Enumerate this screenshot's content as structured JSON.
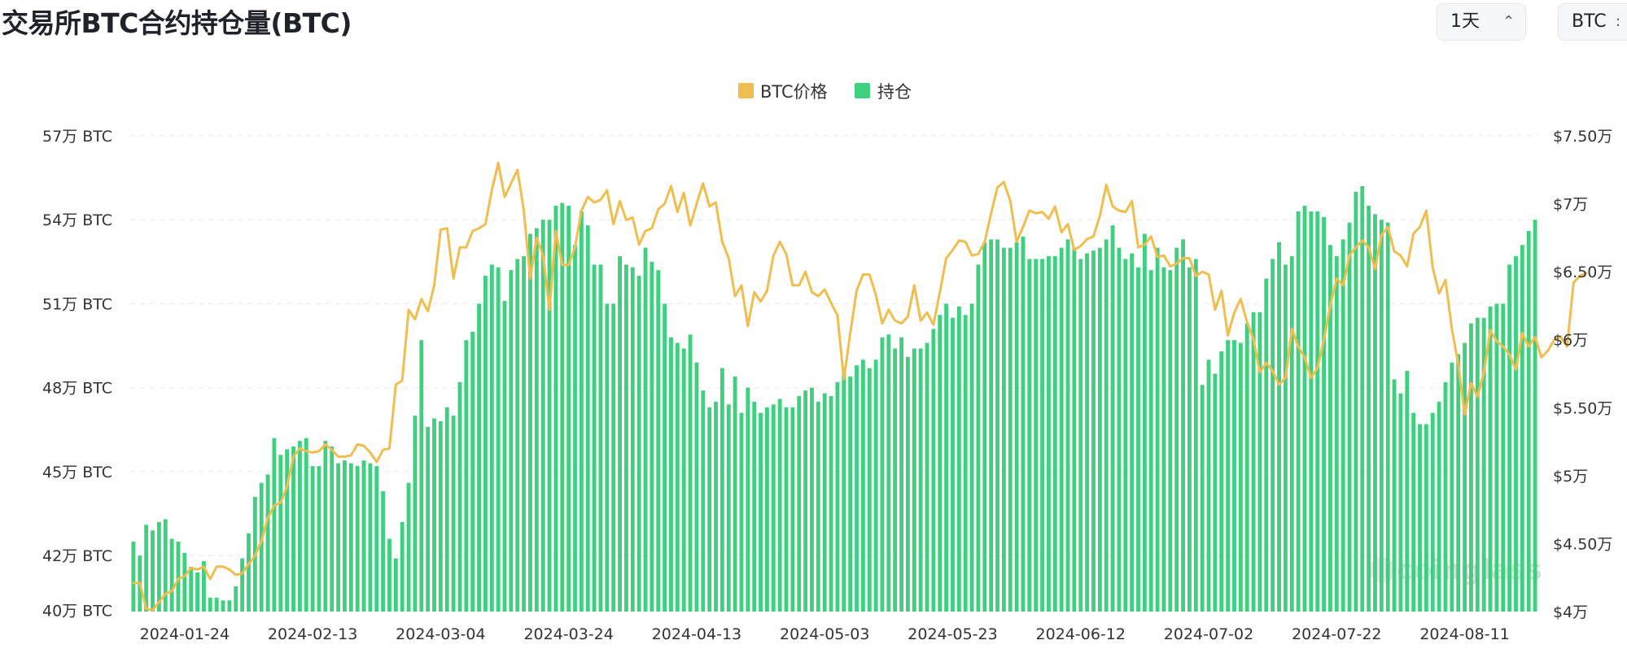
{
  "header": {
    "title": "交易所BTC合约持仓量(BTC)",
    "interval_select": "1天",
    "unit_select": "BTC"
  },
  "watermark": "coinglass",
  "colors": {
    "price": "#f0bd4f",
    "oi": "#3fd07f",
    "grid": "#e6e8eb"
  },
  "chart_data": {
    "type": "bar",
    "title": "交易所BTC合约持仓量(BTC)",
    "legend": {
      "placement": "top-center",
      "items": [
        "BTC价格",
        "持仓"
      ]
    },
    "x_ticks": [
      "2024-01-24",
      "2024-02-13",
      "2024-03-04",
      "2024-03-24",
      "2024-04-13",
      "2024-05-03",
      "2024-05-23",
      "2024-06-12",
      "2024-07-02",
      "2024-07-22",
      "2024-08-11"
    ],
    "y_left": {
      "unit": "BTC",
      "min": 40,
      "max": 57,
      "ticks": [
        "57万 BTC",
        "54万 BTC",
        "51万 BTC",
        "48万 BTC",
        "45万 BTC",
        "42万 BTC",
        "40万 BTC"
      ],
      "tick_values": [
        57,
        54,
        51,
        48,
        45,
        42,
        40.05
      ]
    },
    "y_right": {
      "min": 40000,
      "max": 75000,
      "ticks": [
        "$7.50万",
        "$7万",
        "$6.50万",
        "$6万",
        "$5.50万",
        "$5万",
        "$4.50万",
        "$4万"
      ],
      "tick_values": [
        75000,
        70000,
        65000,
        60000,
        55000,
        50000,
        45000,
        40000
      ]
    },
    "start_date": "2024-01-16",
    "grid": true,
    "series": [
      {
        "name": "持仓",
        "type": "bar",
        "unit": "万 BTC",
        "values": [
          42.5,
          42,
          43.1,
          42.9,
          43.2,
          43.3,
          42.6,
          42.5,
          42.1,
          41.6,
          41.4,
          41.8,
          40.5,
          40.5,
          40.4,
          40.4,
          40.9,
          41.9,
          42.8,
          44.1,
          44.6,
          44.9,
          46.2,
          45.6,
          45.8,
          45.9,
          46.1,
          46.2,
          45.2,
          45.2,
          46.1,
          45.9,
          45.3,
          45.4,
          45.3,
          45.2,
          45.4,
          45.3,
          45.2,
          44.3,
          42.6,
          41.9,
          43.2,
          44.6,
          47.0,
          49.7,
          46.6,
          46.9,
          46.8,
          47.3,
          47.0,
          48.2,
          49.7,
          50.0,
          51.0,
          52.0,
          52.4,
          52.3,
          51.1,
          52.2,
          52.6,
          52.7,
          53.5,
          53.7,
          54.0,
          54.0,
          54.5,
          54.6,
          54.5,
          53.1,
          54.3,
          53.8,
          52.4,
          52.4,
          51.0,
          51.0,
          52.7,
          52.4,
          52.3,
          52.0,
          53.0,
          52.5,
          52.2,
          51.0,
          49.8,
          49.6,
          49.4,
          49.9,
          48.9,
          47.9,
          47.3,
          47.5,
          48.7,
          47.4,
          48.4,
          47.1,
          48.0,
          47.5,
          47.1,
          47.3,
          47.4,
          47.6,
          47.3,
          47.3,
          47.7,
          47.9,
          48.0,
          47.5,
          47.8,
          47.7,
          48.2,
          48.5,
          48.4,
          48.8,
          49.0,
          48.7,
          49.0,
          49.8,
          49.9,
          49.4,
          49.8,
          49.1,
          49.4,
          49.4,
          49.6,
          50.1,
          50.6,
          51.0,
          50.5,
          50.9,
          50.6,
          51.0,
          52.4,
          53.2,
          53.3,
          53.3,
          53.0,
          53.0,
          53.2,
          53.4,
          52.6,
          52.6,
          52.6,
          52.7,
          52.7,
          53.0,
          53.3,
          53.0,
          52.6,
          52.8,
          52.9,
          53.0,
          53.3,
          53.8,
          53.0,
          52.6,
          52.8,
          52.3,
          53.5,
          52.2,
          53.0,
          52.3,
          52.2,
          53.0,
          53.3,
          52.3,
          52.6,
          48.1,
          49.0,
          48.5,
          49.3,
          49.7,
          49.7,
          49.6,
          50.3,
          50.7,
          50.7,
          51.9,
          52.6,
          53.2,
          52.4,
          52.7,
          54.3,
          54.5,
          54.3,
          54.3,
          54.1,
          53.1,
          52.7,
          53.3,
          53.9,
          55.0,
          55.2,
          54.5,
          54.2,
          54.0,
          53.9,
          48.3,
          47.8,
          48.6,
          47.1,
          46.7,
          46.7,
          47.1,
          47.5,
          48.2,
          48.9,
          49.2,
          49.6,
          50.3,
          50.5,
          50.5,
          50.9,
          51.0,
          51.0,
          52.4,
          52.7,
          53.1,
          53.6,
          54.0
        ]
      },
      {
        "name": "BTC价格",
        "type": "line",
        "unit": "USD",
        "values": [
          42100,
          42100,
          40200,
          40100,
          40700,
          41300,
          41500,
          42400,
          42600,
          43200,
          43100,
          43300,
          42400,
          43300,
          43300,
          43100,
          42700,
          42800,
          43500,
          44100,
          45200,
          46900,
          47800,
          48000,
          49200,
          51400,
          52000,
          51800,
          51700,
          51800,
          52300,
          51900,
          51400,
          51400,
          51500,
          52300,
          52200,
          51700,
          51000,
          51900,
          52000,
          56700,
          57000,
          62200,
          61500,
          63000,
          62100,
          64000,
          68100,
          68200,
          64500,
          66800,
          66800,
          68000,
          68200,
          68500,
          71000,
          73000,
          70500,
          71500,
          72500,
          69500,
          64500,
          67500,
          66200,
          62200,
          68000,
          65500,
          65500,
          66800,
          69500,
          70500,
          70100,
          70300,
          71000,
          68500,
          70200,
          68800,
          69000,
          67000,
          68000,
          68200,
          69600,
          70000,
          71300,
          69400,
          70800,
          68400,
          70000,
          71500,
          69800,
          70100,
          67200,
          66000,
          63200,
          64000,
          61000,
          63500,
          62800,
          63600,
          66200,
          67200,
          66300,
          64000,
          64000,
          65000,
          63500,
          63200,
          63700,
          62700,
          61800,
          57100,
          60500,
          63600,
          64800,
          64800,
          63300,
          61200,
          62200,
          61400,
          61200,
          61700,
          64000,
          61400,
          62000,
          61100,
          63500,
          66000,
          66600,
          67300,
          67200,
          66200,
          66300,
          67200,
          69300,
          71200,
          71600,
          70200,
          67200,
          68300,
          69500,
          69300,
          69400,
          68900,
          69800,
          67900,
          68500,
          66600,
          66900,
          67400,
          67600,
          69100,
          71400,
          69800,
          69500,
          69400,
          70200,
          66800,
          67000,
          67600,
          66100,
          66200,
          65400,
          65600,
          66000,
          66000,
          64700,
          65000,
          64800,
          62200,
          63600,
          60300,
          62000,
          63000,
          61300,
          60000,
          57600,
          58300,
          57700,
          56700,
          57200,
          60800,
          59500,
          58700,
          57200,
          57900,
          60000,
          62500,
          64500,
          64000,
          66200,
          66800,
          67300,
          66800,
          65200,
          67700,
          68300,
          66500,
          66200,
          65400,
          67800,
          68300,
          69500,
          65300,
          63400,
          64400,
          60800,
          58200,
          54500,
          56800,
          55800,
          57600,
          60700,
          59900,
          59500,
          58900,
          57800,
          60500,
          59500,
          60200,
          58700,
          59200,
          60000,
          60200,
          59500,
          64200,
          64700,
          64900
        ]
      }
    ]
  }
}
